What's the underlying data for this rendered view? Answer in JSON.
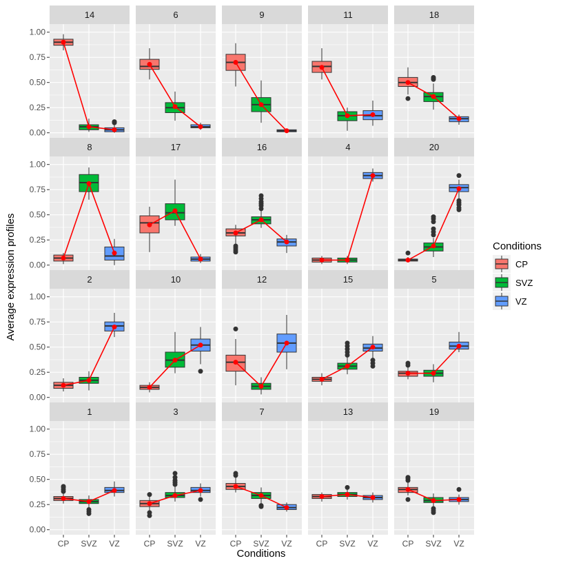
{
  "chart_data": {
    "type": "box",
    "title": "",
    "xlabel": "Conditions",
    "ylabel": "Average expression profiles",
    "categories": [
      "CP",
      "SVZ",
      "VZ"
    ],
    "ylim": [
      -0.05,
      1.08
    ],
    "yticks": [
      0.0,
      0.25,
      0.5,
      0.75,
      1.0
    ],
    "ytick_labels": [
      "0.00",
      "0.25",
      "0.50",
      "0.75",
      "1.00"
    ],
    "legend": {
      "title": "Conditions",
      "position": "right",
      "items": [
        {
          "label": "CP",
          "color": "#F8766D"
        },
        {
          "label": "SVZ",
          "color": "#00BA38"
        },
        {
          "label": "VZ",
          "color": "#619CFF"
        }
      ]
    },
    "mean_line_color": "#FF0000",
    "panels": [
      {
        "label": "14",
        "means": [
          0.9,
          0.06,
          0.03
        ],
        "boxes": [
          {
            "lo": 0.82,
            "q1": 0.87,
            "med": 0.9,
            "q3": 0.93,
            "hi": 0.98,
            "out": []
          },
          {
            "lo": 0.01,
            "q1": 0.03,
            "med": 0.06,
            "q3": 0.08,
            "hi": 0.14,
            "out": []
          },
          {
            "lo": 0.0,
            "q1": 0.01,
            "med": 0.03,
            "q3": 0.05,
            "hi": 0.08,
            "out": [
              0.1,
              0.11
            ]
          }
        ]
      },
      {
        "label": "6",
        "means": [
          0.68,
          0.26,
          0.06
        ],
        "boxes": [
          {
            "lo": 0.53,
            "q1": 0.63,
            "med": 0.66,
            "q3": 0.73,
            "hi": 0.84,
            "out": []
          },
          {
            "lo": 0.12,
            "q1": 0.2,
            "med": 0.25,
            "q3": 0.3,
            "hi": 0.41,
            "out": []
          },
          {
            "lo": 0.03,
            "q1": 0.05,
            "med": 0.06,
            "q3": 0.08,
            "hi": 0.1,
            "out": []
          }
        ]
      },
      {
        "label": "9",
        "means": [
          0.7,
          0.28,
          0.02
        ],
        "boxes": [
          {
            "lo": 0.46,
            "q1": 0.62,
            "med": 0.7,
            "q3": 0.78,
            "hi": 0.89,
            "out": []
          },
          {
            "lo": 0.1,
            "q1": 0.21,
            "med": 0.28,
            "q3": 0.35,
            "hi": 0.52,
            "out": []
          },
          {
            "lo": 0.0,
            "q1": 0.01,
            "med": 0.02,
            "q3": 0.03,
            "hi": 0.04,
            "out": []
          }
        ]
      },
      {
        "label": "11",
        "means": [
          0.65,
          0.17,
          0.18
        ],
        "boxes": [
          {
            "lo": 0.53,
            "q1": 0.6,
            "med": 0.66,
            "q3": 0.71,
            "hi": 0.84,
            "out": []
          },
          {
            "lo": 0.02,
            "q1": 0.12,
            "med": 0.17,
            "q3": 0.21,
            "hi": 0.25,
            "out": []
          },
          {
            "lo": 0.07,
            "q1": 0.13,
            "med": 0.17,
            "q3": 0.22,
            "hi": 0.32,
            "out": []
          }
        ]
      },
      {
        "label": "18",
        "means": [
          0.5,
          0.36,
          0.14
        ],
        "boxes": [
          {
            "lo": 0.38,
            "q1": 0.46,
            "med": 0.5,
            "q3": 0.55,
            "hi": 0.65,
            "out": [
              0.34
            ]
          },
          {
            "lo": 0.23,
            "q1": 0.31,
            "med": 0.36,
            "q3": 0.4,
            "hi": 0.49,
            "out": [
              0.53,
              0.54,
              0.55
            ]
          },
          {
            "lo": 0.08,
            "q1": 0.11,
            "med": 0.14,
            "q3": 0.16,
            "hi": 0.18,
            "out": []
          }
        ]
      },
      {
        "label": "8",
        "means": [
          0.07,
          0.81,
          0.12
        ],
        "boxes": [
          {
            "lo": 0.01,
            "q1": 0.04,
            "med": 0.07,
            "q3": 0.1,
            "hi": 0.12,
            "out": []
          },
          {
            "lo": 0.65,
            "q1": 0.73,
            "med": 0.82,
            "q3": 0.9,
            "hi": 0.97,
            "out": []
          },
          {
            "lo": 0.0,
            "q1": 0.05,
            "med": 0.09,
            "q3": 0.18,
            "hi": 0.26,
            "out": []
          }
        ]
      },
      {
        "label": "17",
        "means": [
          0.4,
          0.54,
          0.06
        ],
        "boxes": [
          {
            "lo": 0.13,
            "q1": 0.32,
            "med": 0.42,
            "q3": 0.49,
            "hi": 0.58,
            "out": []
          },
          {
            "lo": 0.39,
            "q1": 0.45,
            "med": 0.52,
            "q3": 0.61,
            "hi": 0.85,
            "out": []
          },
          {
            "lo": 0.02,
            "q1": 0.04,
            "med": 0.06,
            "q3": 0.08,
            "hi": 0.11,
            "out": []
          }
        ]
      },
      {
        "label": "16",
        "means": [
          0.32,
          0.45,
          0.23
        ],
        "boxes": [
          {
            "lo": 0.21,
            "q1": 0.29,
            "med": 0.32,
            "q3": 0.36,
            "hi": 0.4,
            "out": [
              0.19,
              0.17,
              0.15,
              0.13
            ]
          },
          {
            "lo": 0.37,
            "q1": 0.41,
            "med": 0.45,
            "q3": 0.48,
            "hi": 0.54,
            "out": [
              0.56,
              0.59,
              0.61,
              0.63,
              0.66,
              0.69
            ]
          },
          {
            "lo": 0.12,
            "q1": 0.19,
            "med": 0.23,
            "q3": 0.26,
            "hi": 0.3,
            "out": []
          }
        ]
      },
      {
        "label": "4",
        "means": [
          0.05,
          0.05,
          0.89
        ],
        "boxes": [
          {
            "lo": 0.01,
            "q1": 0.03,
            "med": 0.05,
            "q3": 0.07,
            "hi": 0.09,
            "out": []
          },
          {
            "lo": 0.01,
            "q1": 0.03,
            "med": 0.05,
            "q3": 0.07,
            "hi": 0.09,
            "out": []
          },
          {
            "lo": 0.83,
            "q1": 0.86,
            "med": 0.89,
            "q3": 0.92,
            "hi": 0.96,
            "out": []
          }
        ]
      },
      {
        "label": "20",
        "means": [
          0.05,
          0.19,
          0.76
        ],
        "boxes": [
          {
            "lo": 0.03,
            "q1": 0.04,
            "med": 0.05,
            "q3": 0.06,
            "hi": 0.08,
            "out": [
              0.12
            ]
          },
          {
            "lo": 0.08,
            "q1": 0.14,
            "med": 0.18,
            "q3": 0.22,
            "hi": 0.27,
            "out": [
              0.3,
              0.33,
              0.36,
              0.43,
              0.46,
              0.48
            ]
          },
          {
            "lo": 0.66,
            "q1": 0.73,
            "med": 0.77,
            "q3": 0.8,
            "hi": 0.85,
            "out": [
              0.89,
              0.64,
              0.62,
              0.6,
              0.57,
              0.55
            ]
          }
        ]
      },
      {
        "label": "2",
        "means": [
          0.12,
          0.17,
          0.7
        ],
        "boxes": [
          {
            "lo": 0.06,
            "q1": 0.09,
            "med": 0.12,
            "q3": 0.15,
            "hi": 0.19,
            "out": []
          },
          {
            "lo": 0.07,
            "q1": 0.14,
            "med": 0.17,
            "q3": 0.2,
            "hi": 0.26,
            "out": []
          },
          {
            "lo": 0.6,
            "q1": 0.66,
            "med": 0.71,
            "q3": 0.75,
            "hi": 0.84,
            "out": []
          }
        ]
      },
      {
        "label": "10",
        "means": [
          0.1,
          0.37,
          0.52
        ],
        "boxes": [
          {
            "lo": 0.05,
            "q1": 0.08,
            "med": 0.1,
            "q3": 0.12,
            "hi": 0.15,
            "out": []
          },
          {
            "lo": 0.24,
            "q1": 0.3,
            "med": 0.37,
            "q3": 0.45,
            "hi": 0.65,
            "out": []
          },
          {
            "lo": 0.33,
            "q1": 0.46,
            "med": 0.52,
            "q3": 0.58,
            "hi": 0.7,
            "out": [
              0.26
            ]
          }
        ]
      },
      {
        "label": "12",
        "means": [
          0.35,
          0.11,
          0.54
        ],
        "boxes": [
          {
            "lo": 0.12,
            "q1": 0.26,
            "med": 0.35,
            "q3": 0.42,
            "hi": 0.58,
            "out": [
              0.68
            ]
          },
          {
            "lo": 0.03,
            "q1": 0.08,
            "med": 0.11,
            "q3": 0.14,
            "hi": 0.2,
            "out": []
          },
          {
            "lo": 0.28,
            "q1": 0.45,
            "med": 0.54,
            "q3": 0.63,
            "hi": 0.82,
            "out": []
          }
        ]
      },
      {
        "label": "15",
        "means": [
          0.18,
          0.31,
          0.5
        ],
        "boxes": [
          {
            "lo": 0.12,
            "q1": 0.16,
            "med": 0.18,
            "q3": 0.2,
            "hi": 0.24,
            "out": []
          },
          {
            "lo": 0.23,
            "q1": 0.28,
            "med": 0.31,
            "q3": 0.34,
            "hi": 0.4,
            "out": [
              0.42,
              0.45,
              0.48,
              0.51,
              0.54
            ]
          },
          {
            "lo": 0.39,
            "q1": 0.46,
            "med": 0.49,
            "q3": 0.53,
            "hi": 0.61,
            "out": [
              0.37,
              0.34,
              0.31
            ]
          }
        ]
      },
      {
        "label": "5",
        "means": [
          0.24,
          0.24,
          0.51
        ],
        "boxes": [
          {
            "lo": 0.18,
            "q1": 0.21,
            "med": 0.24,
            "q3": 0.26,
            "hi": 0.3,
            "out": [
              0.32,
              0.34
            ]
          },
          {
            "lo": 0.15,
            "q1": 0.21,
            "med": 0.24,
            "q3": 0.27,
            "hi": 0.33,
            "out": []
          },
          {
            "lo": 0.45,
            "q1": 0.48,
            "med": 0.51,
            "q3": 0.55,
            "hi": 0.65,
            "out": []
          }
        ]
      },
      {
        "label": "1",
        "means": [
          0.31,
          0.28,
          0.39
        ],
        "boxes": [
          {
            "lo": 0.26,
            "q1": 0.29,
            "med": 0.31,
            "q3": 0.33,
            "hi": 0.36,
            "out": [
              0.38,
              0.4,
              0.42,
              0.43
            ]
          },
          {
            "lo": 0.22,
            "q1": 0.26,
            "med": 0.28,
            "q3": 0.3,
            "hi": 0.34,
            "out": [
              0.2,
              0.18,
              0.16
            ]
          },
          {
            "lo": 0.33,
            "q1": 0.37,
            "med": 0.39,
            "q3": 0.42,
            "hi": 0.48,
            "out": []
          }
        ]
      },
      {
        "label": "3",
        "means": [
          0.26,
          0.34,
          0.39
        ],
        "boxes": [
          {
            "lo": 0.19,
            "q1": 0.23,
            "med": 0.26,
            "q3": 0.29,
            "hi": 0.33,
            "out": [
              0.35,
              0.17,
              0.14
            ]
          },
          {
            "lo": 0.28,
            "q1": 0.32,
            "med": 0.34,
            "q3": 0.37,
            "hi": 0.43,
            "out": [
              0.45,
              0.47,
              0.49,
              0.52,
              0.56
            ]
          },
          {
            "lo": 0.33,
            "q1": 0.37,
            "med": 0.39,
            "q3": 0.42,
            "hi": 0.46,
            "out": [
              0.3
            ]
          }
        ]
      },
      {
        "label": "7",
        "means": [
          0.43,
          0.34,
          0.22
        ],
        "boxes": [
          {
            "lo": 0.37,
            "q1": 0.4,
            "med": 0.43,
            "q3": 0.46,
            "hi": 0.52,
            "out": [
              0.54,
              0.56
            ]
          },
          {
            "lo": 0.26,
            "q1": 0.31,
            "med": 0.34,
            "q3": 0.37,
            "hi": 0.42,
            "out": [
              0.24,
              0.23
            ]
          },
          {
            "lo": 0.18,
            "q1": 0.2,
            "med": 0.22,
            "q3": 0.25,
            "hi": 0.27,
            "out": []
          }
        ]
      },
      {
        "label": "13",
        "means": [
          0.33,
          0.35,
          0.32
        ],
        "boxes": [
          {
            "lo": 0.28,
            "q1": 0.31,
            "med": 0.33,
            "q3": 0.35,
            "hi": 0.37,
            "out": []
          },
          {
            "lo": 0.3,
            "q1": 0.33,
            "med": 0.35,
            "q3": 0.37,
            "hi": 0.4,
            "out": [
              0.42
            ]
          },
          {
            "lo": 0.27,
            "q1": 0.3,
            "med": 0.32,
            "q3": 0.34,
            "hi": 0.37,
            "out": []
          }
        ]
      },
      {
        "label": "19",
        "means": [
          0.4,
          0.29,
          0.3
        ],
        "boxes": [
          {
            "lo": 0.34,
            "q1": 0.37,
            "med": 0.4,
            "q3": 0.42,
            "hi": 0.47,
            "out": [
              0.49,
              0.51,
              0.52,
              0.3
            ]
          },
          {
            "lo": 0.23,
            "q1": 0.27,
            "med": 0.29,
            "q3": 0.32,
            "hi": 0.36,
            "out": [
              0.21,
              0.19,
              0.17
            ]
          },
          {
            "lo": 0.25,
            "q1": 0.28,
            "med": 0.3,
            "q3": 0.32,
            "hi": 0.35,
            "out": [
              0.4
            ]
          }
        ]
      }
    ]
  }
}
